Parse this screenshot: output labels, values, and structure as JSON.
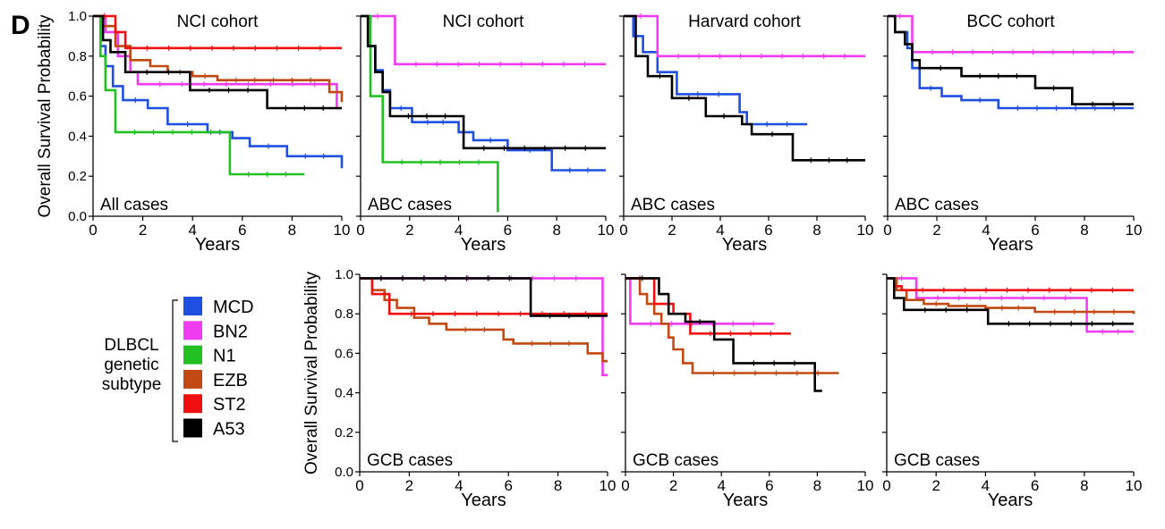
{
  "panel_label": "D",
  "shared": {
    "y_axis_label": "Overall Survival Probability",
    "x_axis_label": "Years",
    "y_ticks": [
      0.0,
      0.2,
      0.4,
      0.6,
      0.8,
      1.0
    ],
    "y_tick_labels": [
      "0.0",
      "0.2",
      "0.4",
      "0.6",
      "0.8",
      "1.0"
    ],
    "x_ticks": [
      0,
      2,
      4,
      6,
      8,
      10
    ],
    "x_tick_labels": [
      "0",
      "2",
      "4",
      "6",
      "8",
      "10"
    ]
  },
  "legend": {
    "title_lines": [
      "DLBCL",
      "genetic",
      "subtype"
    ],
    "items": [
      {
        "label": "MCD",
        "color": "#1f4fe0"
      },
      {
        "label": "BN2",
        "color": "#f03cf0"
      },
      {
        "label": "N1",
        "color": "#22c022"
      },
      {
        "label": "EZB",
        "color": "#c24a12"
      },
      {
        "label": "ST2",
        "color": "#f01010"
      },
      {
        "label": "A53",
        "color": "#000000"
      }
    ]
  },
  "chart_data": [
    {
      "type": "line",
      "step": true,
      "title": "NCI cohort",
      "subtitle": "All cases",
      "xlabel": "Years",
      "ylabel": "Overall Survival Probability",
      "xlim": [
        0,
        10
      ],
      "ylim": [
        0,
        1
      ],
      "series": [
        {
          "name": "MCD",
          "x": [
            0,
            0.3,
            0.5,
            0.8,
            1.2,
            2.2,
            3.0,
            4.6,
            5.6,
            6.3,
            7.8,
            10
          ],
          "y": [
            1.0,
            0.85,
            0.75,
            0.65,
            0.58,
            0.54,
            0.46,
            0.42,
            0.39,
            0.35,
            0.3,
            0.24
          ]
        },
        {
          "name": "BN2",
          "x": [
            0,
            0.5,
            1.0,
            1.5,
            1.8,
            9.8,
            10
          ],
          "y": [
            1.0,
            0.92,
            0.8,
            0.72,
            0.66,
            0.54,
            0.54
          ]
        },
        {
          "name": "N1",
          "x": [
            0,
            0.3,
            0.5,
            0.9,
            5.5,
            8.5
          ],
          "y": [
            1.0,
            0.8,
            0.63,
            0.42,
            0.21,
            0.21
          ]
        },
        {
          "name": "EZB",
          "x": [
            0,
            0.4,
            0.9,
            1.5,
            2.3,
            3.0,
            4.0,
            5.0,
            9.5,
            10
          ],
          "y": [
            1.0,
            0.95,
            0.85,
            0.78,
            0.75,
            0.72,
            0.7,
            0.68,
            0.62,
            0.57
          ]
        },
        {
          "name": "ST2",
          "x": [
            0,
            0.9,
            1.3,
            10
          ],
          "y": [
            1.0,
            0.92,
            0.84,
            0.84
          ]
        },
        {
          "name": "A53",
          "x": [
            0,
            0.4,
            0.7,
            1.3,
            3.9,
            7.0,
            10
          ],
          "y": [
            1.0,
            0.88,
            0.82,
            0.72,
            0.63,
            0.54,
            0.54
          ]
        }
      ]
    },
    {
      "type": "line",
      "step": true,
      "title": "NCI cohort",
      "subtitle": "ABC cases",
      "xlabel": "Years",
      "ylabel": "",
      "xlim": [
        0,
        10
      ],
      "ylim": [
        0,
        1
      ],
      "series": [
        {
          "name": "MCD",
          "x": [
            0,
            0.3,
            0.6,
            0.9,
            1.2,
            2.1,
            4.0,
            4.6,
            6.0,
            7.8,
            10
          ],
          "y": [
            1.0,
            0.85,
            0.73,
            0.63,
            0.54,
            0.47,
            0.42,
            0.38,
            0.33,
            0.23,
            0.23
          ]
        },
        {
          "name": "BN2",
          "x": [
            0,
            1.4,
            10
          ],
          "y": [
            1.0,
            0.76,
            0.76
          ]
        },
        {
          "name": "N1",
          "x": [
            0,
            0.4,
            0.9,
            5.6
          ],
          "y": [
            1.0,
            0.6,
            0.27,
            0.02
          ]
        },
        {
          "name": "A53",
          "x": [
            0,
            0.3,
            0.6,
            0.9,
            1.2,
            4.2,
            10
          ],
          "y": [
            1.0,
            0.85,
            0.72,
            0.62,
            0.5,
            0.34,
            0.34
          ]
        }
      ]
    },
    {
      "type": "line",
      "step": true,
      "title": "Harvard cohort",
      "subtitle": "ABC cases",
      "xlabel": "Years",
      "ylabel": "",
      "xlim": [
        0,
        10
      ],
      "ylim": [
        0,
        1
      ],
      "series": [
        {
          "name": "MCD",
          "x": [
            0,
            0.4,
            0.8,
            1.4,
            2.2,
            4.8,
            5.1,
            7.6
          ],
          "y": [
            1.0,
            0.9,
            0.82,
            0.72,
            0.61,
            0.52,
            0.46,
            0.46
          ]
        },
        {
          "name": "BN2",
          "x": [
            0,
            1.4,
            10
          ],
          "y": [
            1.0,
            0.8,
            0.8
          ]
        },
        {
          "name": "A53",
          "x": [
            0,
            0.5,
            1.0,
            2.0,
            3.4,
            4.9,
            5.3,
            7.0,
            10
          ],
          "y": [
            1.0,
            0.8,
            0.7,
            0.59,
            0.5,
            0.46,
            0.41,
            0.28,
            0.28
          ]
        }
      ]
    },
    {
      "type": "line",
      "step": true,
      "title": "BCC cohort",
      "subtitle": "ABC cases",
      "xlabel": "Years",
      "ylabel": "",
      "xlim": [
        0,
        10
      ],
      "ylim": [
        0,
        1
      ],
      "series": [
        {
          "name": "MCD",
          "x": [
            0,
            0.3,
            0.8,
            1.0,
            1.3,
            2.2,
            3.0,
            4.5,
            10
          ],
          "y": [
            1.0,
            0.92,
            0.84,
            0.74,
            0.64,
            0.6,
            0.58,
            0.54,
            0.54
          ]
        },
        {
          "name": "BN2",
          "x": [
            0,
            1.0,
            10
          ],
          "y": [
            1.0,
            0.82,
            0.82
          ]
        },
        {
          "name": "A53",
          "x": [
            0,
            0.3,
            0.7,
            1.0,
            1.3,
            3.0,
            6.0,
            7.5,
            10
          ],
          "y": [
            1.0,
            0.92,
            0.86,
            0.78,
            0.74,
            0.7,
            0.64,
            0.56,
            0.56
          ]
        }
      ]
    },
    {
      "type": "line",
      "step": true,
      "title": "",
      "subtitle": "GCB cases",
      "xlabel": "Years",
      "ylabel": "Overall Survival Probability",
      "xlim": [
        0,
        10
      ],
      "ylim": [
        0,
        1
      ],
      "series": [
        {
          "name": "BN2",
          "x": [
            0,
            9.6,
            9.8,
            10
          ],
          "y": [
            0.98,
            0.98,
            0.49,
            0.49
          ]
        },
        {
          "name": "EZB",
          "x": [
            0,
            0.5,
            1.0,
            1.5,
            2.2,
            2.8,
            3.5,
            5.8,
            6.2,
            9.2,
            9.8,
            10
          ],
          "y": [
            0.98,
            0.92,
            0.87,
            0.83,
            0.78,
            0.75,
            0.72,
            0.67,
            0.65,
            0.6,
            0.56,
            0.56
          ]
        },
        {
          "name": "ST2",
          "x": [
            0,
            0.5,
            1.2,
            10
          ],
          "y": [
            0.98,
            0.9,
            0.8,
            0.8
          ]
        },
        {
          "name": "A53",
          "x": [
            0,
            6.9,
            10
          ],
          "y": [
            0.98,
            0.79,
            0.79
          ]
        }
      ]
    },
    {
      "type": "line",
      "step": true,
      "title": "",
      "subtitle": "GCB cases",
      "xlabel": "Years",
      "ylabel": "",
      "xlim": [
        0,
        10
      ],
      "ylim": [
        0,
        1
      ],
      "series": [
        {
          "name": "BN2",
          "x": [
            0,
            0.2,
            6.2
          ],
          "y": [
            0.98,
            0.75,
            0.75
          ]
        },
        {
          "name": "EZB",
          "x": [
            0,
            0.6,
            0.9,
            1.2,
            1.5,
            1.8,
            2.0,
            2.4,
            2.8,
            8.9
          ],
          "y": [
            0.98,
            0.9,
            0.85,
            0.8,
            0.75,
            0.68,
            0.62,
            0.55,
            0.5,
            0.5
          ]
        },
        {
          "name": "ST2",
          "x": [
            0,
            1.2,
            2.0,
            2.7,
            6.9
          ],
          "y": [
            0.98,
            0.85,
            0.8,
            0.7,
            0.7
          ]
        },
        {
          "name": "A53",
          "x": [
            0,
            1.4,
            1.8,
            2.5,
            3.7,
            4.5,
            7.9,
            8.0,
            8.2
          ],
          "y": [
            0.98,
            0.9,
            0.8,
            0.76,
            0.67,
            0.55,
            0.41,
            0.41,
            0.41
          ]
        }
      ]
    },
    {
      "type": "line",
      "step": true,
      "title": "",
      "subtitle": "GCB cases",
      "xlabel": "Years",
      "ylabel": "",
      "xlim": [
        0,
        10
      ],
      "ylim": [
        0,
        1
      ],
      "series": [
        {
          "name": "BN2",
          "x": [
            0,
            1.2,
            8.1,
            10
          ],
          "y": [
            0.98,
            0.88,
            0.71,
            0.71
          ]
        },
        {
          "name": "EZB",
          "x": [
            0,
            0.4,
            0.8,
            1.5,
            2.5,
            4.0,
            6.0,
            10
          ],
          "y": [
            0.98,
            0.92,
            0.87,
            0.85,
            0.84,
            0.83,
            0.81,
            0.8
          ]
        },
        {
          "name": "ST2",
          "x": [
            0,
            0.3,
            0.6,
            10
          ],
          "y": [
            0.98,
            0.94,
            0.92,
            0.92
          ]
        },
        {
          "name": "A53",
          "x": [
            0,
            0.3,
            0.7,
            4.1,
            10
          ],
          "y": [
            0.98,
            0.88,
            0.82,
            0.75,
            0.75
          ]
        }
      ]
    }
  ]
}
